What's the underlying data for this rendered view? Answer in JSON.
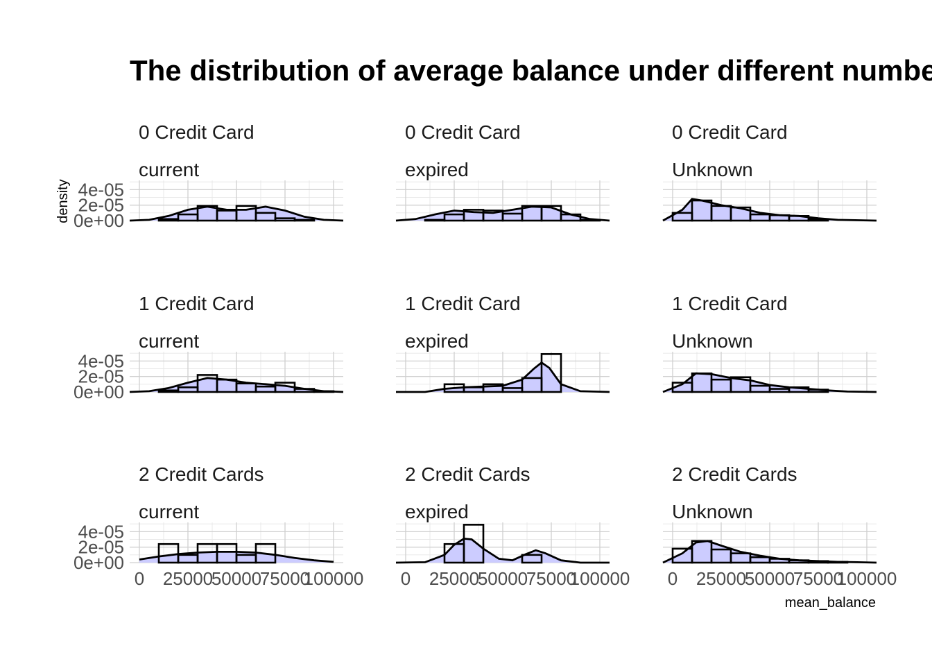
{
  "chart_data": {
    "type": "histogram-density-facets",
    "title": "The distribution of average balance under different number of",
    "xlabel": "mean_balance",
    "ylabel": "density",
    "xlim": [
      -5000,
      105000
    ],
    "ylim": [
      0,
      5.2e-05
    ],
    "x_ticks": [
      0,
      25000,
      50000,
      75000,
      100000
    ],
    "x_tick_labels": [
      "0",
      "25000",
      "50000",
      "75000",
      "100000"
    ],
    "y_ticks": [
      0,
      2e-05,
      4e-05
    ],
    "y_tick_labels": [
      "0e+00",
      "2e-05",
      "4e-05"
    ],
    "bin_width": 10000,
    "bin_starts": [
      0,
      10000,
      20000,
      30000,
      40000,
      50000,
      60000,
      70000,
      80000,
      90000
    ],
    "panels": [
      {
        "strip_top": "0 Credit Card",
        "strip_bottom": "current",
        "hist": [
          0,
          2e-06,
          8e-06,
          1.9e-05,
          1.3e-05,
          1.9e-05,
          1e-05,
          3e-06,
          1e-06,
          0
        ],
        "density": [
          [
            -5000,
            0
          ],
          [
            5000,
            1e-06
          ],
          [
            15000,
            6e-06
          ],
          [
            25000,
            1.4e-05
          ],
          [
            35000,
            1.8e-05
          ],
          [
            45000,
            1.4e-05
          ],
          [
            55000,
            1.4e-05
          ],
          [
            65000,
            1.8e-05
          ],
          [
            75000,
            1.3e-05
          ],
          [
            85000,
            5e-06
          ],
          [
            95000,
            1e-06
          ],
          [
            105000,
            0
          ]
        ]
      },
      {
        "strip_top": "0 Credit Card",
        "strip_bottom": "expired",
        "hist": [
          0,
          1e-06,
          8e-06,
          1.4e-05,
          1.3e-05,
          9e-06,
          1.9e-05,
          1.9e-05,
          8e-06,
          1e-06
        ],
        "density": [
          [
            -5000,
            0
          ],
          [
            5000,
            2e-06
          ],
          [
            15000,
            8e-06
          ],
          [
            25000,
            1.3e-05
          ],
          [
            35000,
            1.1e-05
          ],
          [
            45000,
            1e-05
          ],
          [
            55000,
            1.4e-05
          ],
          [
            65000,
            1.8e-05
          ],
          [
            75000,
            1.7e-05
          ],
          [
            85000,
            8e-06
          ],
          [
            95000,
            2e-06
          ],
          [
            105000,
            0
          ]
        ]
      },
      {
        "strip_top": "0 Credit Card",
        "strip_bottom": "Unknown",
        "hist": [
          1e-05,
          2.6e-05,
          1.9e-05,
          1.7e-05,
          8e-06,
          7e-06,
          6e-06,
          2e-06,
          0,
          0
        ],
        "density": [
          [
            -5000,
            0
          ],
          [
            5000,
            1.4e-05
          ],
          [
            10000,
            2.8e-05
          ],
          [
            15000,
            2.6e-05
          ],
          [
            25000,
            2e-05
          ],
          [
            35000,
            1.6e-05
          ],
          [
            45000,
            1e-05
          ],
          [
            55000,
            7e-06
          ],
          [
            65000,
            6e-06
          ],
          [
            75000,
            3e-06
          ],
          [
            85000,
            1e-06
          ],
          [
            105000,
            0
          ]
        ]
      },
      {
        "strip_top": "1 Credit Card",
        "strip_bottom": "current",
        "hist": [
          0,
          2e-06,
          6e-06,
          2.2e-05,
          1.6e-05,
          1.1e-05,
          7e-06,
          1.2e-05,
          4e-06,
          1e-06
        ],
        "density": [
          [
            -5000,
            0
          ],
          [
            5000,
            1e-06
          ],
          [
            15000,
            5e-06
          ],
          [
            25000,
            1.2e-05
          ],
          [
            35000,
            1.8e-05
          ],
          [
            45000,
            1.6e-05
          ],
          [
            55000,
            1.2e-05
          ],
          [
            65000,
            1e-05
          ],
          [
            75000,
            8e-06
          ],
          [
            85000,
            4e-06
          ],
          [
            95000,
            1e-06
          ],
          [
            105000,
            0
          ]
        ]
      },
      {
        "strip_top": "1 Credit Card",
        "strip_bottom": "expired",
        "hist": [
          0,
          0,
          1e-05,
          6e-06,
          1e-05,
          5e-06,
          1.8e-05,
          4.9e-05,
          0,
          0
        ],
        "density": [
          [
            -5000,
            0
          ],
          [
            10000,
            0
          ],
          [
            20000,
            4e-06
          ],
          [
            30000,
            6e-06
          ],
          [
            40000,
            7e-06
          ],
          [
            50000,
            8e-06
          ],
          [
            60000,
            1.6e-05
          ],
          [
            66000,
            3e-05
          ],
          [
            70000,
            3.8e-05
          ],
          [
            74000,
            3.1e-05
          ],
          [
            80000,
            1e-05
          ],
          [
            90000,
            1e-06
          ],
          [
            105000,
            0
          ]
        ]
      },
      {
        "strip_top": "1 Credit Card",
        "strip_bottom": "Unknown",
        "hist": [
          1.2e-05,
          2.4e-05,
          1.6e-05,
          1.9e-05,
          8e-06,
          4e-06,
          6e-06,
          3e-06,
          0,
          0
        ],
        "density": [
          [
            -5000,
            0
          ],
          [
            5000,
            1e-05
          ],
          [
            12000,
            2.4e-05
          ],
          [
            20000,
            2.3e-05
          ],
          [
            30000,
            1.8e-05
          ],
          [
            40000,
            1.5e-05
          ],
          [
            50000,
            9e-06
          ],
          [
            60000,
            6e-06
          ],
          [
            70000,
            4e-06
          ],
          [
            80000,
            2e-06
          ],
          [
            90000,
            5e-07
          ],
          [
            105000,
            0
          ]
        ]
      },
      {
        "strip_top": "2 Credit Cards",
        "strip_bottom": "current",
        "hist": [
          0,
          2.4e-05,
          1e-05,
          2.4e-05,
          2.4e-05,
          1e-05,
          2.4e-05,
          0,
          0,
          0
        ],
        "density": [
          [
            0,
            4e-06
          ],
          [
            10000,
            8e-06
          ],
          [
            20000,
            1.1e-05
          ],
          [
            30000,
            1.3e-05
          ],
          [
            40000,
            1.4e-05
          ],
          [
            50000,
            1.4e-05
          ],
          [
            60000,
            1.3e-05
          ],
          [
            70000,
            1e-05
          ],
          [
            80000,
            6e-06
          ],
          [
            90000,
            3e-06
          ],
          [
            100000,
            1e-06
          ]
        ]
      },
      {
        "strip_top": "2 Credit Cards",
        "strip_bottom": "expired",
        "hist": [
          0,
          0,
          2.4e-05,
          4.9e-05,
          0,
          0,
          1e-05,
          0,
          0,
          0
        ],
        "density": [
          [
            -5000,
            0
          ],
          [
            10000,
            5e-07
          ],
          [
            20000,
            1e-05
          ],
          [
            25000,
            2.3e-05
          ],
          [
            30000,
            3.1e-05
          ],
          [
            34000,
            3e-05
          ],
          [
            40000,
            1.8e-05
          ],
          [
            48000,
            5e-06
          ],
          [
            55000,
            3e-06
          ],
          [
            62000,
            1.1e-05
          ],
          [
            67000,
            1.6e-05
          ],
          [
            72000,
            1.2e-05
          ],
          [
            80000,
            3e-06
          ],
          [
            90000,
            0
          ],
          [
            105000,
            0
          ]
        ]
      },
      {
        "strip_top": "2 Credit Cards",
        "strip_bottom": "Unknown",
        "hist": [
          1.8e-05,
          2.8e-05,
          1.7e-05,
          1.2e-05,
          7e-06,
          5e-06,
          3e-06,
          2e-06,
          1e-06,
          0
        ],
        "density": [
          [
            -5000,
            0
          ],
          [
            5000,
            1.2e-05
          ],
          [
            12000,
            2.6e-05
          ],
          [
            18000,
            2.8e-05
          ],
          [
            25000,
            2.2e-05
          ],
          [
            35000,
            1.4e-05
          ],
          [
            45000,
            9e-06
          ],
          [
            55000,
            5e-06
          ],
          [
            65000,
            3e-06
          ],
          [
            75000,
            2e-06
          ],
          [
            85000,
            1e-06
          ],
          [
            95000,
            5e-07
          ],
          [
            105000,
            0
          ]
        ]
      }
    ]
  }
}
